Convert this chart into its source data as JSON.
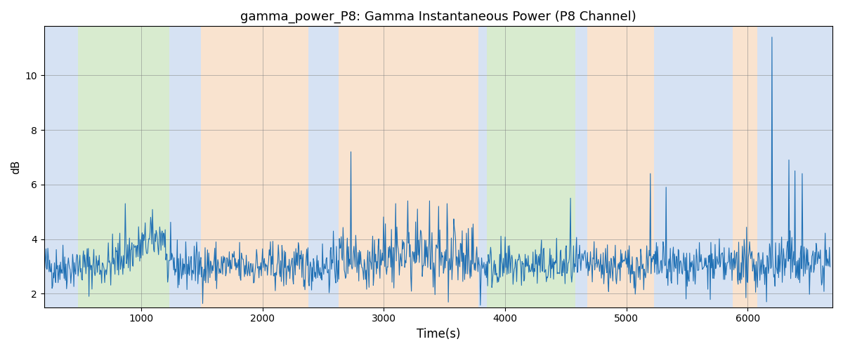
{
  "title": "gamma_power_P8: Gamma Instantaneous Power (P8 Channel)",
  "xlabel": "Time(s)",
  "ylabel": "dB",
  "xlim": [
    200,
    6700
  ],
  "ylim": [
    1.5,
    11.8
  ],
  "yticks": [
    2,
    4,
    6,
    8,
    10
  ],
  "line_color": "#2070b4",
  "line_width": 0.8,
  "bg_regions": [
    {
      "xmin": 200,
      "xmax": 480,
      "color": "#aec6e8",
      "alpha": 0.5
    },
    {
      "xmin": 480,
      "xmax": 1230,
      "color": "#b2d9a0",
      "alpha": 0.5
    },
    {
      "xmin": 1230,
      "xmax": 1490,
      "color": "#aec6e8",
      "alpha": 0.5
    },
    {
      "xmin": 1490,
      "xmax": 2380,
      "color": "#f5c9a0",
      "alpha": 0.5
    },
    {
      "xmin": 2380,
      "xmax": 2630,
      "color": "#aec6e8",
      "alpha": 0.5
    },
    {
      "xmin": 2630,
      "xmax": 3780,
      "color": "#f5c9a0",
      "alpha": 0.5
    },
    {
      "xmin": 3780,
      "xmax": 3850,
      "color": "#aec6e8",
      "alpha": 0.5
    },
    {
      "xmin": 3850,
      "xmax": 4130,
      "color": "#b2d9a0",
      "alpha": 0.5
    },
    {
      "xmin": 4130,
      "xmax": 4580,
      "color": "#b2d9a0",
      "alpha": 0.5
    },
    {
      "xmin": 4580,
      "xmax": 4680,
      "color": "#aec6e8",
      "alpha": 0.5
    },
    {
      "xmin": 4680,
      "xmax": 5230,
      "color": "#f5c9a0",
      "alpha": 0.5
    },
    {
      "xmin": 5230,
      "xmax": 5880,
      "color": "#aec6e8",
      "alpha": 0.5
    },
    {
      "xmin": 5880,
      "xmax": 6080,
      "color": "#f5c9a0",
      "alpha": 0.5
    },
    {
      "xmin": 6080,
      "xmax": 6700,
      "color": "#aec6e8",
      "alpha": 0.5
    }
  ],
  "seed": 42,
  "n_points": 1300,
  "t_start": 200,
  "t_end": 6680,
  "base_mean": 3.0,
  "base_std": 0.42,
  "figsize": [
    12,
    5
  ],
  "dpi": 100
}
